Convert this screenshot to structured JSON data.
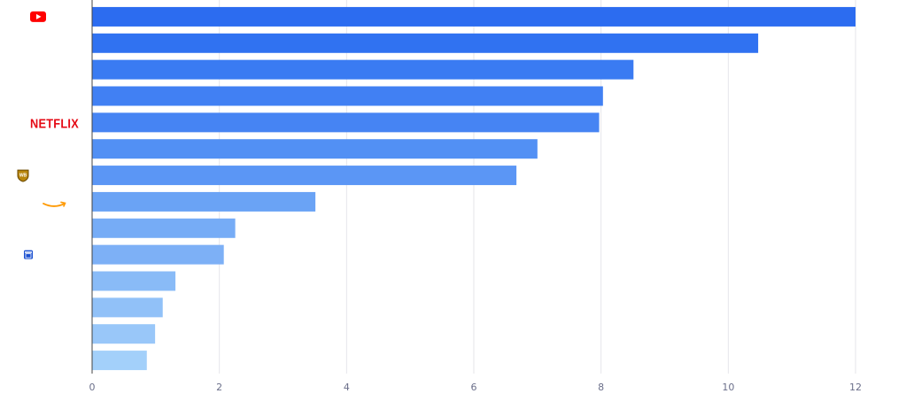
{
  "chart_data": {
    "type": "bar",
    "orientation": "horizontal",
    "title": "",
    "xlabel": "",
    "ylabel": "",
    "xlim": [
      0,
      12
    ],
    "x_ticks": [
      "0",
      "2",
      "4",
      "6",
      "8",
      "10",
      "12"
    ],
    "grid": "vertical",
    "legend": "none",
    "values": [
      12.0,
      10.47,
      8.51,
      8.03,
      7.97,
      7.0,
      6.67,
      3.51,
      2.25,
      2.07,
      1.31,
      1.11,
      0.99,
      0.86
    ],
    "bar_colors": [
      "#2c6cf0",
      "#3072f1",
      "#3a7bf2",
      "#4180f3",
      "#4684f3",
      "#5290f4",
      "#5b96f5",
      "#6aa3f5",
      "#76acf6",
      "#7db0f6",
      "#89bbf7",
      "#91c1f8",
      "#99c7f9",
      "#a3d0fa"
    ],
    "category_logos": [
      {
        "row": 0,
        "icon": "youtube-icon"
      },
      {
        "row": 4,
        "icon": "netflix-logo",
        "text": "NETFLIX"
      },
      {
        "row": 6,
        "icon": "warner-bros-shield-icon",
        "text": "WB"
      },
      {
        "row": 7,
        "icon": "amazon-smile-icon"
      },
      {
        "row": 9,
        "icon": "calendar-app-icon"
      }
    ]
  },
  "colors": {
    "youtube": "#ff0000",
    "netflix": "#e50914",
    "warner": "#b8860b",
    "amazon": "#ff9900",
    "app_icon": "#1a4fd0",
    "grid": "#e6e6ea",
    "axis": "#444444"
  }
}
